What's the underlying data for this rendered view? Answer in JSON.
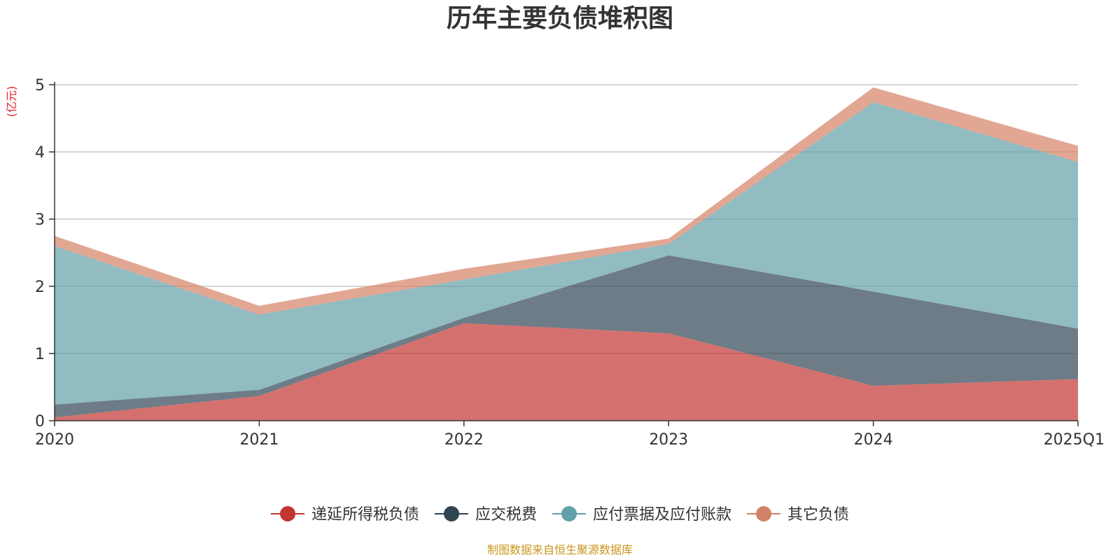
{
  "chart_data": {
    "type": "area",
    "stacked": true,
    "title": "历年主要负债堆积图",
    "unit": "(亿元)",
    "categories": [
      "2020",
      "2021",
      "2022",
      "2023",
      "2024",
      "2025Q1"
    ],
    "yticks": [
      "0",
      "1",
      "2",
      "3",
      "4",
      "5"
    ],
    "ylim": [
      0,
      5
    ],
    "grid": true,
    "legend_position": "bottom",
    "series": [
      {
        "name": "递延所得税负债",
        "color": "#c23531",
        "values": [
          0.05,
          0.37,
          1.45,
          1.3,
          0.52,
          0.62
        ]
      },
      {
        "name": "应交税费",
        "color": "#2f4554",
        "values": [
          0.19,
          0.09,
          0.08,
          1.16,
          1.4,
          0.75
        ]
      },
      {
        "name": "应付票据及应付账款",
        "color": "#61a0a8",
        "values": [
          2.36,
          1.12,
          0.57,
          0.17,
          2.82,
          2.48
        ]
      },
      {
        "name": "其它负债",
        "color": "#d48265",
        "values": [
          0.15,
          0.13,
          0.16,
          0.08,
          0.22,
          0.24
        ]
      }
    ],
    "source_note": "制图数据来自恒生聚源数据库"
  }
}
